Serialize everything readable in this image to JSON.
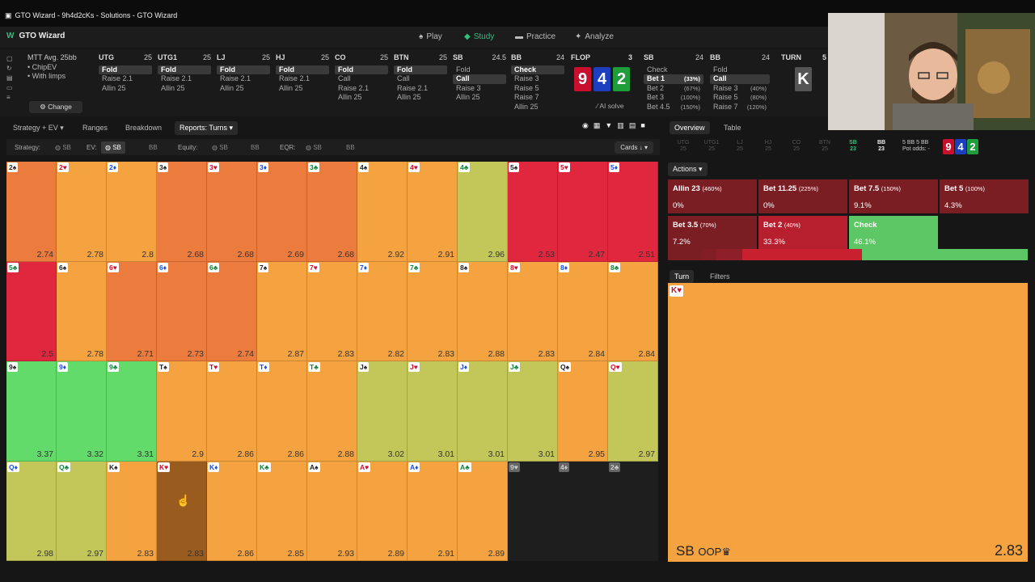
{
  "window": {
    "title": "GTO Wizard - 9h4d2cKs - Solutions - GTO Wizard"
  },
  "app": {
    "brand": "GTO Wizard"
  },
  "nav": [
    {
      "label": "Play",
      "icon": "spade-icon"
    },
    {
      "label": "Study",
      "icon": "layers-icon",
      "active": true
    },
    {
      "label": "Practice",
      "icon": "camera-icon"
    },
    {
      "label": "Analyze",
      "icon": "sparkle-icon"
    }
  ],
  "format": {
    "title": "MTT Avg. 25bb",
    "opt1": "• ChipEV",
    "opt2": "• With limps",
    "change": "Change"
  },
  "positions": [
    {
      "pos": "UTG",
      "stack": "25",
      "actions": [
        "Fold",
        "Raise 2.1",
        "Allin 25"
      ],
      "selected": 0
    },
    {
      "pos": "UTG1",
      "stack": "25",
      "actions": [
        "Fold",
        "Raise 2.1",
        "Allin 25"
      ],
      "selected": 0
    },
    {
      "pos": "LJ",
      "stack": "25",
      "actions": [
        "Fold",
        "Raise 2.1",
        "Allin 25"
      ],
      "selected": 0
    },
    {
      "pos": "HJ",
      "stack": "25",
      "actions": [
        "Fold",
        "Raise 2.1",
        "Allin 25"
      ],
      "selected": 0
    },
    {
      "pos": "CO",
      "stack": "25",
      "actions": [
        "Fold",
        "Call",
        "Raise 2.1",
        "Allin 25"
      ],
      "selected": 0
    },
    {
      "pos": "BTN",
      "stack": "25",
      "actions": [
        "Fold",
        "Call",
        "Raise 2.1",
        "Allin 25"
      ],
      "selected": 0
    },
    {
      "pos": "SB",
      "stack": "24.5",
      "actions": [
        "Fold",
        "Call",
        "Raise 3",
        "Allin 25"
      ],
      "selected": 1
    },
    {
      "pos": "BB",
      "stack": "24",
      "actions": [
        "Check",
        "Raise 3",
        "Raise 5",
        "Raise 7",
        "Allin 25"
      ],
      "selected": 0
    }
  ],
  "flop": {
    "label": "FLOP",
    "pot": "3",
    "cards": [
      {
        "rank": "9",
        "color": "#c8102e"
      },
      {
        "rank": "4",
        "color": "#1d3fbf"
      },
      {
        "rank": "2",
        "color": "#1f9d3a"
      }
    ],
    "solve": "AI solve"
  },
  "flop_sb": {
    "pos": "SB",
    "stack": "24",
    "actions": [
      {
        "label": "Check",
        "pct": ""
      },
      {
        "label": "Bet 1",
        "pct": "(33%)"
      },
      {
        "label": "Bet 2",
        "pct": "(67%)"
      },
      {
        "label": "Bet 3",
        "pct": "(100%)"
      },
      {
        "label": "Bet 4.5",
        "pct": "(150%)"
      }
    ],
    "selected": 1
  },
  "flop_bb": {
    "pos": "BB",
    "stack": "24",
    "actions": [
      {
        "label": "Fold",
        "pct": ""
      },
      {
        "label": "Call",
        "pct": ""
      },
      {
        "label": "Raise 3",
        "pct": "(40%)"
      },
      {
        "label": "Raise 5",
        "pct": "(80%)"
      },
      {
        "label": "Raise 7",
        "pct": "(120%)"
      }
    ],
    "selected": 1
  },
  "turn": {
    "label": "TURN",
    "pot": "5",
    "card": "K"
  },
  "toolbar": {
    "strategy": "Strategy + EV",
    "ranges": "Ranges",
    "breakdown": "Breakdown",
    "reports": "Reports: Turns"
  },
  "filters": {
    "strategy": "Strategy:",
    "strategy_sb": "SB",
    "ev": "EV:",
    "ev_sb": "SB",
    "ev_bb": "BB",
    "equity": "Equity:",
    "eq_sb": "SB",
    "eq_bb": "BB",
    "eqr": "EQR:",
    "eqr_sb": "SB",
    "eqr_bb": "BB",
    "cards": "Cards ↓"
  },
  "turn_cards": [
    {
      "card": "2♠",
      "ev": "2.74",
      "color": "#ec7b3e"
    },
    {
      "card": "2♥",
      "ev": "2.78",
      "color": "#f4a340"
    },
    {
      "card": "2♦",
      "ev": "2.8",
      "color": "#f4a340"
    },
    {
      "card": "3♠",
      "ev": "2.68",
      "color": "#ec7b3e"
    },
    {
      "card": "3♥",
      "ev": "2.68",
      "color": "#ec7b3e"
    },
    {
      "card": "3♦",
      "ev": "2.69",
      "color": "#ec7b3e"
    },
    {
      "card": "3♣",
      "ev": "2.68",
      "color": "#ec7b3e"
    },
    {
      "card": "4♠",
      "ev": "2.92",
      "color": "#f4a340"
    },
    {
      "card": "4♥",
      "ev": "2.91",
      "color": "#f4a340"
    },
    {
      "card": "4♣",
      "ev": "2.96",
      "color": "#c3c75a"
    },
    {
      "card": "5♠",
      "ev": "2.53",
      "color": "#e0273d"
    },
    {
      "card": "5♥",
      "ev": "2.47",
      "color": "#e0273d"
    },
    {
      "card": "5♦",
      "ev": "2.51",
      "color": "#e0273d"
    },
    {
      "card": "5♣",
      "ev": "2.5",
      "color": "#e0273d"
    },
    {
      "card": "6♠",
      "ev": "2.78",
      "color": "#f4a340"
    },
    {
      "card": "6♥",
      "ev": "2.71",
      "color": "#ec7b3e"
    },
    {
      "card": "6♦",
      "ev": "2.73",
      "color": "#ec7b3e"
    },
    {
      "card": "6♣",
      "ev": "2.74",
      "color": "#ec7b3e"
    },
    {
      "card": "7♠",
      "ev": "2.87",
      "color": "#f4a340"
    },
    {
      "card": "7♥",
      "ev": "2.83",
      "color": "#f4a340"
    },
    {
      "card": "7♦",
      "ev": "2.82",
      "color": "#f4a340"
    },
    {
      "card": "7♣",
      "ev": "2.83",
      "color": "#f4a340"
    },
    {
      "card": "8♠",
      "ev": "2.88",
      "color": "#f4a340"
    },
    {
      "card": "8♥",
      "ev": "2.83",
      "color": "#f4a340"
    },
    {
      "card": "8♦",
      "ev": "2.84",
      "color": "#f4a340"
    },
    {
      "card": "8♣",
      "ev": "2.84",
      "color": "#f4a340"
    },
    {
      "card": "9♠",
      "ev": "3.37",
      "color": "#62db6a"
    },
    {
      "card": "9♦",
      "ev": "3.32",
      "color": "#62db6a"
    },
    {
      "card": "9♣",
      "ev": "3.31",
      "color": "#62db6a"
    },
    {
      "card": "T♠",
      "ev": "2.9",
      "color": "#f4a340"
    },
    {
      "card": "T♥",
      "ev": "2.86",
      "color": "#f4a340"
    },
    {
      "card": "T♦",
      "ev": "2.86",
      "color": "#f4a340"
    },
    {
      "card": "T♣",
      "ev": "2.88",
      "color": "#f4a340"
    },
    {
      "card": "J♠",
      "ev": "3.02",
      "color": "#c3c75a"
    },
    {
      "card": "J♥",
      "ev": "3.01",
      "color": "#c3c75a"
    },
    {
      "card": "J♦",
      "ev": "3.01",
      "color": "#c3c75a"
    },
    {
      "card": "J♣",
      "ev": "3.01",
      "color": "#c3c75a"
    },
    {
      "card": "Q♠",
      "ev": "2.95",
      "color": "#f4a340"
    },
    {
      "card": "Q♥",
      "ev": "2.97",
      "color": "#c3c75a"
    },
    {
      "card": "Q♦",
      "ev": "2.98",
      "color": "#c3c75a"
    },
    {
      "card": "Q♣",
      "ev": "2.97",
      "color": "#c3c75a"
    },
    {
      "card": "K♠",
      "ev": "2.83",
      "color": "#f4a340"
    },
    {
      "card": "K♥",
      "ev": "2.83",
      "color": "#9a5c1e",
      "hover": true
    },
    {
      "card": "K♦",
      "ev": "2.86",
      "color": "#f4a340"
    },
    {
      "card": "K♣",
      "ev": "2.85",
      "color": "#f4a340"
    },
    {
      "card": "A♠",
      "ev": "2.93",
      "color": "#f4a340"
    },
    {
      "card": "A♥",
      "ev": "2.89",
      "color": "#f4a340"
    },
    {
      "card": "A♦",
      "ev": "2.91",
      "color": "#f4a340"
    },
    {
      "card": "A♣",
      "ev": "2.89",
      "color": "#f4a340"
    }
  ],
  "dead_cards": [
    "9♥",
    "4♦",
    "2♣"
  ],
  "right_tabs": {
    "overview": "Overview",
    "table": "Table"
  },
  "pos_strip": [
    {
      "pos": "UTG",
      "stack": "25"
    },
    {
      "pos": "UTG1",
      "stack": "25"
    },
    {
      "pos": "LJ",
      "stack": "25"
    },
    {
      "pos": "HJ",
      "stack": "25"
    },
    {
      "pos": "CO",
      "stack": "25"
    },
    {
      "pos": "BTN",
      "stack": "25"
    },
    {
      "pos": "SB",
      "stack": "23"
    },
    {
      "pos": "BB",
      "stack": "23"
    }
  ],
  "pot": {
    "line1": "5 BB  5 BB",
    "line2": "Pot odds: -"
  },
  "board": [
    {
      "rank": "9",
      "color": "#c8102e"
    },
    {
      "rank": "4",
      "color": "#1d3fbf"
    },
    {
      "rank": "2",
      "color": "#1f9d3a"
    }
  ],
  "actions_label": "Actions",
  "actions": [
    {
      "label": "Allin 23",
      "pct_size": "(460%)",
      "freq": "0%",
      "color": "#7a1e24"
    },
    {
      "label": "Bet 11.25",
      "pct_size": "(225%)",
      "freq": "0%",
      "color": "#7a1e24"
    },
    {
      "label": "Bet 7.5",
      "pct_size": "(150%)",
      "freq": "9.1%",
      "color": "#7a1e24"
    },
    {
      "label": "Bet 5",
      "pct_size": "(100%)",
      "freq": "4.3%",
      "color": "#7a1e24"
    },
    {
      "label": "Bet 3.5",
      "pct_size": "(70%)",
      "freq": "7.2%",
      "color": "#7a1e24"
    },
    {
      "label": "Bet 2",
      "pct_size": "(40%)",
      "freq": "33.3%",
      "color": "#b81f2e"
    },
    {
      "label": "Check",
      "pct_size": "",
      "freq": "46.1%",
      "color": "#5ec765"
    }
  ],
  "freq_bar": [
    {
      "frac": 0.0,
      "color": "#a01e2b"
    },
    {
      "frac": 0.0,
      "color": "#a01e2b"
    },
    {
      "frac": 0.091,
      "color": "#7a1e24"
    },
    {
      "frac": 0.043,
      "color": "#801e24"
    },
    {
      "frac": 0.072,
      "color": "#8e1e28"
    },
    {
      "frac": 0.333,
      "color": "#c8202f"
    },
    {
      "frac": 0.461,
      "color": "#5ec765"
    }
  ],
  "bottom_tabs": {
    "turn": "Turn",
    "filters": "Filters"
  },
  "selected_turn": {
    "card": "K♥",
    "player": "SB",
    "oop": "OOP",
    "ev": "2.83"
  }
}
